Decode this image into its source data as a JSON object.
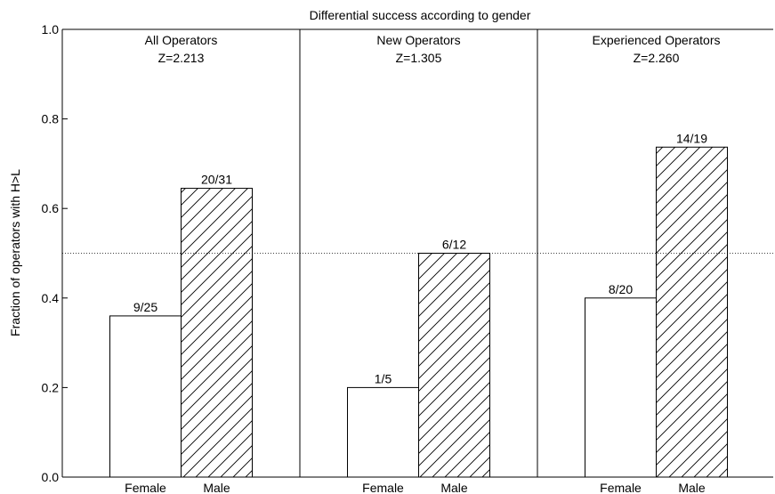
{
  "chart_data": {
    "type": "bar",
    "title": "Differential success according to gender",
    "ylabel": "Fraction of operators with H>L",
    "ylim": [
      0,
      1.0
    ],
    "yticks": [
      "0.0",
      "0.2",
      "0.4",
      "0.6",
      "0.8",
      "1.0"
    ],
    "reference_line": 0.5,
    "categories": [
      "Female",
      "Male"
    ],
    "panels": [
      {
        "name": "All Operators",
        "z": "Z=2.213",
        "values": [
          0.36,
          0.645
        ],
        "labels": [
          "9/25",
          "20/31"
        ]
      },
      {
        "name": "New Operators",
        "z": "Z=1.305",
        "values": [
          0.2,
          0.5
        ],
        "labels": [
          "1/5",
          "6/12"
        ]
      },
      {
        "name": "Experienced Operators",
        "z": "Z=2.260",
        "values": [
          0.4,
          0.737
        ],
        "labels": [
          "8/20",
          "14/19"
        ]
      }
    ],
    "colors": {
      "female": "#ffffff",
      "male_hatch": "#000000",
      "line": "#000000"
    }
  }
}
